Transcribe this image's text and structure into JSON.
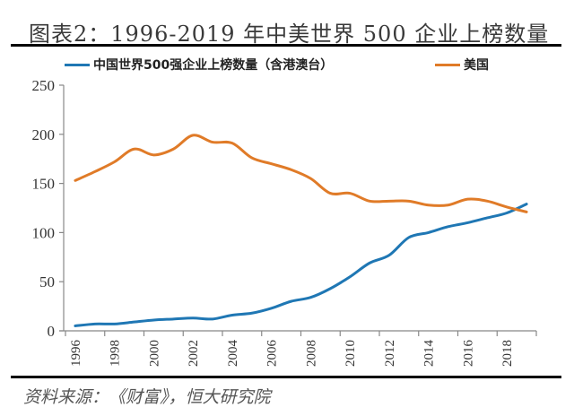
{
  "title": "图表2：1996-2019 年中美世界 500 企业上榜数量",
  "source": "资料来源：《财富》，恒大研究院",
  "chart_data": {
    "type": "line",
    "title": "图表2：1996-2019 年中美世界 500 企业上榜数量",
    "xlabel": "",
    "ylabel": "",
    "x": [
      1996,
      1997,
      1998,
      1999,
      2000,
      2001,
      2002,
      2003,
      2004,
      2005,
      2006,
      2007,
      2008,
      2009,
      2010,
      2011,
      2012,
      2013,
      2014,
      2015,
      2016,
      2017,
      2018,
      2019
    ],
    "x_tick_labels": [
      "1996",
      "1998",
      "2000",
      "2002",
      "2004",
      "2006",
      "2008",
      "2010",
      "2012",
      "2014",
      "2016",
      "2018"
    ],
    "y_tick_labels": [
      "0",
      "50",
      "100",
      "150",
      "200",
      "250"
    ],
    "ylim": [
      0,
      250
    ],
    "grid": false,
    "legend_position": "top",
    "series": [
      {
        "name": "中国世界500强企业上榜数量（含港澳台）",
        "color": "#1f77b4",
        "values": [
          5,
          7,
          7,
          9,
          11,
          12,
          13,
          12,
          16,
          18,
          23,
          30,
          34,
          43,
          55,
          69,
          77,
          95,
          100,
          106,
          110,
          115,
          120,
          129
        ]
      },
      {
        "name": "美国",
        "color": "#e07b28",
        "values": [
          153,
          162,
          172,
          185,
          179,
          185,
          199,
          192,
          191,
          176,
          170,
          164,
          155,
          140,
          140,
          132,
          132,
          132,
          128,
          128,
          134,
          132,
          126,
          121
        ]
      }
    ]
  }
}
